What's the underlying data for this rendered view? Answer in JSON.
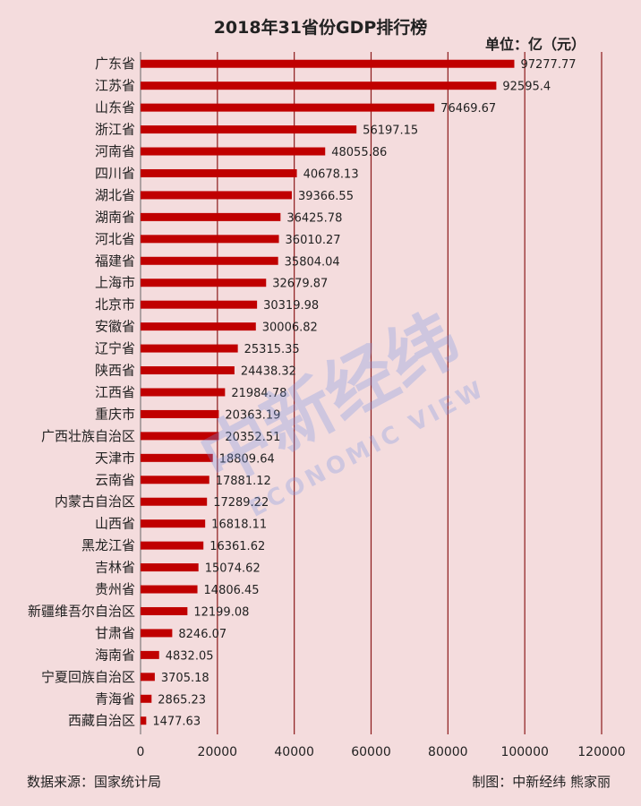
{
  "chart_data": {
    "type": "bar",
    "orientation": "horizontal",
    "title": "2018年31省份GDP排行榜",
    "unit": "单位：亿（元）",
    "xlabel": "",
    "ylabel": "",
    "xlim": [
      0,
      120000
    ],
    "xticks": [
      0,
      20000,
      40000,
      60000,
      80000,
      100000,
      120000
    ],
    "grid": "vertical",
    "bar_color": "#c00000",
    "categories": [
      "广东省",
      "江苏省",
      "山东省",
      "浙江省",
      "河南省",
      "四川省",
      "湖北省",
      "湖南省",
      "河北省",
      "福建省",
      "上海市",
      "北京市",
      "安徽省",
      "辽宁省",
      "陕西省",
      "江西省",
      "重庆市",
      "广西壮族自治区",
      "天津市",
      "云南省",
      "内蒙古自治区",
      "山西省",
      "黑龙江省",
      "吉林省",
      "贵州省",
      "新疆维吾尔自治区",
      "甘肃省",
      "海南省",
      "宁夏回族自治区",
      "青海省",
      "西藏自治区"
    ],
    "values": [
      97277.77,
      92595.4,
      76469.67,
      56197.15,
      48055.86,
      40678.13,
      39366.55,
      36425.78,
      36010.27,
      35804.04,
      32679.87,
      30319.98,
      30006.82,
      25315.35,
      24438.32,
      21984.78,
      20363.19,
      20352.51,
      18809.64,
      17881.12,
      17289.22,
      16818.11,
      16361.62,
      15074.62,
      14806.45,
      12199.08,
      8246.07,
      4832.05,
      3705.18,
      2865.23,
      1477.63
    ],
    "value_labels": [
      "97277.77",
      "92595.4",
      "76469.67",
      "56197.15",
      "48055.86",
      "40678.13",
      "39366.55",
      "36425.78",
      "36010.27",
      "35804.04",
      "32679.87",
      "30319.98",
      "30006.82",
      "25315.35",
      "24438.32",
      "21984.78",
      "20363.19",
      "20352.51",
      "18809.64",
      "17881.12",
      "17289.22",
      "16818.11",
      "16361.62",
      "15074.62",
      "14806.45",
      "12199.08",
      "8246.07",
      "4832.05",
      "3705.18",
      "2865.23",
      "1477.63"
    ]
  },
  "footer": {
    "source": "数据来源：国家统计局",
    "credit": "制图：中新经纬  熊家丽"
  },
  "watermark": {
    "brand": "中新经纬",
    "sub": "ECONOMIC VIEW"
  }
}
